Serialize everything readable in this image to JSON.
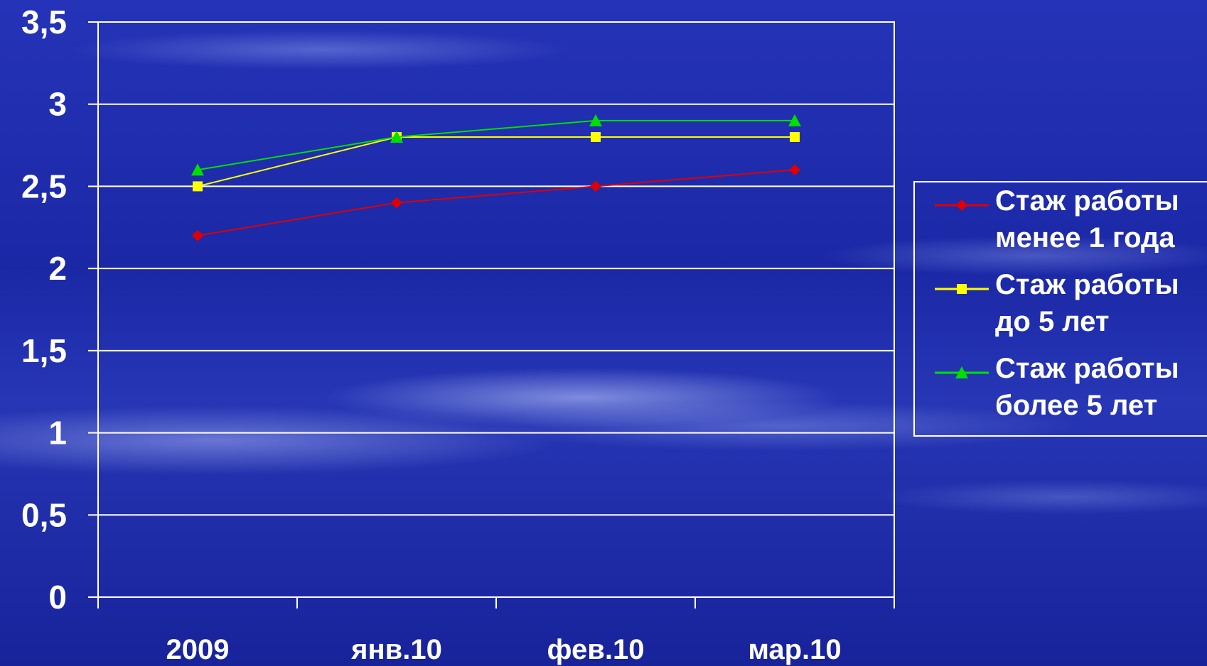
{
  "chart_data": {
    "type": "line",
    "categories": [
      "2009",
      "янв.10",
      "фев.10",
      "мар.10"
    ],
    "y_ticks": [
      "0",
      "0,5",
      "1",
      "1,5",
      "2",
      "2,5",
      "3",
      "3,5"
    ],
    "ylim": [
      0,
      3.5
    ],
    "grid": true,
    "legend_position": "right",
    "series": [
      {
        "name": "Стаж работы менее 1 года",
        "values": [
          2.2,
          2.4,
          2.5,
          2.6
        ],
        "color": "#e00000",
        "marker": "diamond"
      },
      {
        "name": "Стаж работы до 5 лет",
        "values": [
          2.5,
          2.8,
          2.8,
          2.8
        ],
        "color": "#ffff00",
        "marker": "square"
      },
      {
        "name": "Стаж работы более 5 лет",
        "values": [
          2.6,
          2.8,
          2.9,
          2.9
        ],
        "color": "#00e000",
        "marker": "triangle"
      }
    ]
  }
}
